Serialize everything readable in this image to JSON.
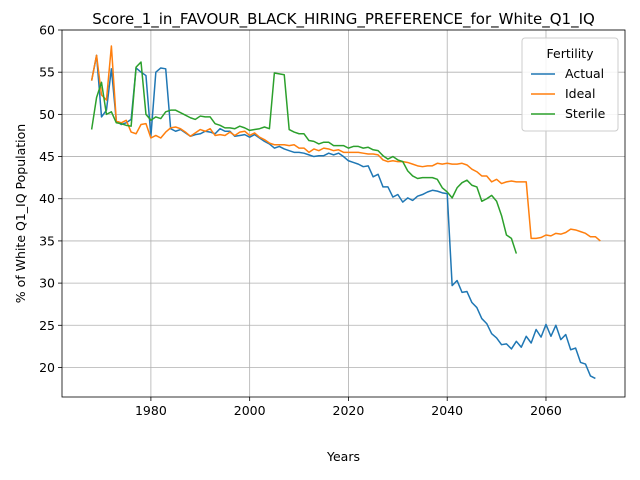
{
  "chart_data": {
    "type": "line",
    "title": "Score_1_in_FAVOUR_BLACK_HIRING_PREFERENCE_for_White_Q1_IQ",
    "xlabel": "Years",
    "ylabel": "% of White Q1_IQ Population",
    "xlim": [
      1962,
      2076
    ],
    "ylim": [
      16.5,
      60
    ],
    "xticks": [
      1980,
      2000,
      2020,
      2040,
      2060
    ],
    "yticks": [
      20,
      25,
      30,
      35,
      40,
      45,
      50,
      55,
      60
    ],
    "grid": true,
    "legend": {
      "title": "Fertility",
      "placement": "top-right"
    },
    "series": [
      {
        "name": "Actual",
        "color": "#1f77b4",
        "points": [
          [
            1968,
            54.0
          ],
          [
            1969,
            57.0
          ],
          [
            1970,
            49.7
          ],
          [
            1971,
            50.5
          ],
          [
            1972,
            55.4
          ],
          [
            1973,
            49.2
          ],
          [
            1974,
            48.8
          ],
          [
            1975,
            49.0
          ],
          [
            1976,
            49.4
          ],
          [
            1977,
            55.5
          ],
          [
            1978,
            55.0
          ],
          [
            1979,
            54.6
          ],
          [
            1980,
            47.4
          ],
          [
            1981,
            55.0
          ],
          [
            1982,
            55.5
          ],
          [
            1983,
            55.4
          ],
          [
            1984,
            48.3
          ],
          [
            1985,
            48.0
          ],
          [
            1986,
            48.2
          ],
          [
            1987,
            47.8
          ],
          [
            1988,
            47.4
          ],
          [
            1989,
            47.6
          ],
          [
            1990,
            47.7
          ],
          [
            1991,
            48.0
          ],
          [
            1992,
            47.9
          ],
          [
            1993,
            47.7
          ],
          [
            1994,
            48.3
          ],
          [
            1995,
            48.0
          ],
          [
            1996,
            48.0
          ],
          [
            1997,
            47.4
          ],
          [
            1998,
            47.5
          ],
          [
            1999,
            47.6
          ],
          [
            2000,
            47.3
          ],
          [
            2001,
            47.6
          ],
          [
            2002,
            47.2
          ],
          [
            2003,
            46.8
          ],
          [
            2004,
            46.5
          ],
          [
            2005,
            46.0
          ],
          [
            2006,
            46.2
          ],
          [
            2007,
            45.9
          ],
          [
            2008,
            45.7
          ],
          [
            2009,
            45.5
          ],
          [
            2010,
            45.5
          ],
          [
            2011,
            45.4
          ],
          [
            2012,
            45.2
          ],
          [
            2013,
            45.0
          ],
          [
            2014,
            45.1
          ],
          [
            2015,
            45.1
          ],
          [
            2016,
            45.4
          ],
          [
            2017,
            45.2
          ],
          [
            2018,
            45.4
          ],
          [
            2019,
            45.0
          ],
          [
            2020,
            44.5
          ],
          [
            2021,
            44.3
          ],
          [
            2022,
            44.1
          ],
          [
            2023,
            43.8
          ],
          [
            2024,
            43.9
          ],
          [
            2025,
            42.6
          ],
          [
            2026,
            42.9
          ],
          [
            2027,
            41.4
          ],
          [
            2028,
            41.4
          ],
          [
            2029,
            40.2
          ],
          [
            2030,
            40.5
          ],
          [
            2031,
            39.6
          ],
          [
            2032,
            40.1
          ],
          [
            2033,
            39.8
          ],
          [
            2034,
            40.3
          ],
          [
            2035,
            40.5
          ],
          [
            2036,
            40.8
          ],
          [
            2037,
            41.0
          ],
          [
            2038,
            40.9
          ],
          [
            2039,
            40.7
          ],
          [
            2040,
            40.6
          ],
          [
            2041,
            29.7
          ],
          [
            2042,
            30.3
          ],
          [
            2043,
            28.9
          ],
          [
            2044,
            29.0
          ],
          [
            2045,
            27.7
          ],
          [
            2046,
            27.1
          ],
          [
            2047,
            25.8
          ],
          [
            2048,
            25.2
          ],
          [
            2049,
            24.0
          ],
          [
            2050,
            23.5
          ],
          [
            2051,
            22.7
          ],
          [
            2052,
            22.8
          ],
          [
            2053,
            22.2
          ],
          [
            2054,
            23.1
          ],
          [
            2055,
            22.4
          ],
          [
            2056,
            23.7
          ],
          [
            2057,
            22.9
          ],
          [
            2058,
            24.5
          ],
          [
            2059,
            23.6
          ],
          [
            2060,
            25.1
          ],
          [
            2061,
            23.7
          ],
          [
            2062,
            25.0
          ],
          [
            2063,
            23.3
          ],
          [
            2064,
            23.9
          ],
          [
            2065,
            22.1
          ],
          [
            2066,
            22.3
          ],
          [
            2067,
            20.6
          ],
          [
            2068,
            20.4
          ],
          [
            2069,
            19.0
          ],
          [
            2070,
            18.7
          ]
        ]
      },
      {
        "name": "Ideal",
        "color": "#ff7f0e",
        "points": [
          [
            1968,
            54.0
          ],
          [
            1969,
            57.0
          ],
          [
            1970,
            52.3
          ],
          [
            1971,
            51.7
          ],
          [
            1972,
            58.1
          ],
          [
            1973,
            49.2
          ],
          [
            1974,
            49.0
          ],
          [
            1975,
            49.3
          ],
          [
            1976,
            47.9
          ],
          [
            1977,
            47.7
          ],
          [
            1978,
            48.8
          ],
          [
            1979,
            48.9
          ],
          [
            1980,
            47.2
          ],
          [
            1981,
            47.5
          ],
          [
            1982,
            47.2
          ],
          [
            1983,
            47.9
          ],
          [
            1984,
            48.4
          ],
          [
            1985,
            48.5
          ],
          [
            1986,
            48.3
          ],
          [
            1987,
            47.9
          ],
          [
            1988,
            47.4
          ],
          [
            1989,
            47.8
          ],
          [
            1990,
            48.2
          ],
          [
            1991,
            48.0
          ],
          [
            1992,
            48.3
          ],
          [
            1993,
            47.5
          ],
          [
            1994,
            47.6
          ],
          [
            1995,
            47.5
          ],
          [
            1996,
            47.9
          ],
          [
            1997,
            47.5
          ],
          [
            1998,
            47.9
          ],
          [
            1999,
            48.0
          ],
          [
            2000,
            47.5
          ],
          [
            2001,
            47.8
          ],
          [
            2002,
            47.3
          ],
          [
            2003,
            47.0
          ],
          [
            2004,
            46.6
          ],
          [
            2005,
            46.4
          ],
          [
            2006,
            46.4
          ],
          [
            2007,
            46.4
          ],
          [
            2008,
            46.3
          ],
          [
            2009,
            46.4
          ],
          [
            2010,
            46.0
          ],
          [
            2011,
            46.0
          ],
          [
            2012,
            45.5
          ],
          [
            2013,
            45.9
          ],
          [
            2014,
            45.7
          ],
          [
            2015,
            46.0
          ],
          [
            2016,
            45.9
          ],
          [
            2017,
            45.7
          ],
          [
            2018,
            45.8
          ],
          [
            2019,
            45.5
          ],
          [
            2020,
            45.5
          ],
          [
            2021,
            45.5
          ],
          [
            2022,
            45.5
          ],
          [
            2023,
            45.4
          ],
          [
            2024,
            45.3
          ],
          [
            2025,
            45.3
          ],
          [
            2026,
            45.2
          ],
          [
            2027,
            44.6
          ],
          [
            2028,
            44.4
          ],
          [
            2029,
            44.5
          ],
          [
            2030,
            44.4
          ],
          [
            2031,
            44.4
          ],
          [
            2032,
            44.3
          ],
          [
            2033,
            44.1
          ],
          [
            2034,
            43.9
          ],
          [
            2035,
            43.8
          ],
          [
            2036,
            43.9
          ],
          [
            2037,
            43.9
          ],
          [
            2038,
            44.2
          ],
          [
            2039,
            44.1
          ],
          [
            2040,
            44.2
          ],
          [
            2041,
            44.1
          ],
          [
            2042,
            44.1
          ],
          [
            2043,
            44.2
          ],
          [
            2044,
            44.0
          ],
          [
            2045,
            43.5
          ],
          [
            2046,
            43.2
          ],
          [
            2047,
            42.7
          ],
          [
            2048,
            42.7
          ],
          [
            2049,
            42.0
          ],
          [
            2050,
            42.3
          ],
          [
            2051,
            41.8
          ],
          [
            2052,
            42.0
          ],
          [
            2053,
            42.1
          ],
          [
            2054,
            42.0
          ],
          [
            2055,
            42.0
          ],
          [
            2056,
            42.0
          ],
          [
            2057,
            35.3
          ],
          [
            2058,
            35.3
          ],
          [
            2059,
            35.4
          ],
          [
            2060,
            35.7
          ],
          [
            2061,
            35.6
          ],
          [
            2062,
            35.9
          ],
          [
            2063,
            35.8
          ],
          [
            2064,
            36.0
          ],
          [
            2065,
            36.4
          ],
          [
            2066,
            36.3
          ],
          [
            2067,
            36.1
          ],
          [
            2068,
            35.9
          ],
          [
            2069,
            35.5
          ],
          [
            2070,
            35.5
          ],
          [
            2071,
            35.0
          ]
        ]
      },
      {
        "name": "Sterile",
        "color": "#2ca02c",
        "points": [
          [
            1968,
            48.2
          ],
          [
            1969,
            52.0
          ],
          [
            1970,
            53.8
          ],
          [
            1971,
            50.0
          ],
          [
            1972,
            50.3
          ],
          [
            1973,
            49.0
          ],
          [
            1974,
            48.9
          ],
          [
            1975,
            48.7
          ],
          [
            1976,
            48.6
          ],
          [
            1977,
            55.6
          ],
          [
            1978,
            56.2
          ],
          [
            1979,
            50.0
          ],
          [
            1980,
            49.3
          ],
          [
            1981,
            49.7
          ],
          [
            1982,
            49.5
          ],
          [
            1983,
            50.3
          ],
          [
            1984,
            50.5
          ],
          [
            1985,
            50.5
          ],
          [
            1986,
            50.2
          ],
          [
            1987,
            49.9
          ],
          [
            1988,
            49.6
          ],
          [
            1989,
            49.4
          ],
          [
            1990,
            49.8
          ],
          [
            1991,
            49.7
          ],
          [
            1992,
            49.7
          ],
          [
            1993,
            48.9
          ],
          [
            1994,
            48.7
          ],
          [
            1995,
            48.4
          ],
          [
            1996,
            48.4
          ],
          [
            1997,
            48.3
          ],
          [
            1998,
            48.6
          ],
          [
            1999,
            48.4
          ],
          [
            2000,
            48.1
          ],
          [
            2001,
            48.2
          ],
          [
            2002,
            48.3
          ],
          [
            2003,
            48.5
          ],
          [
            2004,
            48.3
          ],
          [
            2005,
            54.9
          ],
          [
            2006,
            54.8
          ],
          [
            2007,
            54.7
          ],
          [
            2008,
            48.2
          ],
          [
            2009,
            47.9
          ],
          [
            2010,
            47.7
          ],
          [
            2011,
            47.7
          ],
          [
            2012,
            46.9
          ],
          [
            2013,
            46.8
          ],
          [
            2014,
            46.5
          ],
          [
            2015,
            46.7
          ],
          [
            2016,
            46.7
          ],
          [
            2017,
            46.3
          ],
          [
            2018,
            46.3
          ],
          [
            2019,
            46.3
          ],
          [
            2020,
            46.0
          ],
          [
            2021,
            46.2
          ],
          [
            2022,
            46.2
          ],
          [
            2023,
            46.0
          ],
          [
            2024,
            46.1
          ],
          [
            2025,
            45.8
          ],
          [
            2026,
            45.7
          ],
          [
            2027,
            45.1
          ],
          [
            2028,
            44.7
          ],
          [
            2029,
            45.0
          ],
          [
            2030,
            44.6
          ],
          [
            2031,
            44.4
          ],
          [
            2032,
            43.3
          ],
          [
            2033,
            42.7
          ],
          [
            2034,
            42.4
          ],
          [
            2035,
            42.5
          ],
          [
            2036,
            42.5
          ],
          [
            2037,
            42.5
          ],
          [
            2038,
            42.3
          ],
          [
            2039,
            41.3
          ],
          [
            2040,
            40.8
          ],
          [
            2041,
            40.1
          ],
          [
            2042,
            41.3
          ],
          [
            2043,
            41.9
          ],
          [
            2044,
            42.2
          ],
          [
            2045,
            41.6
          ],
          [
            2046,
            41.4
          ],
          [
            2047,
            39.7
          ],
          [
            2048,
            40.0
          ],
          [
            2049,
            40.4
          ],
          [
            2050,
            39.7
          ],
          [
            2051,
            38.0
          ],
          [
            2052,
            35.7
          ],
          [
            2053,
            35.3
          ],
          [
            2054,
            33.5
          ]
        ]
      }
    ]
  }
}
